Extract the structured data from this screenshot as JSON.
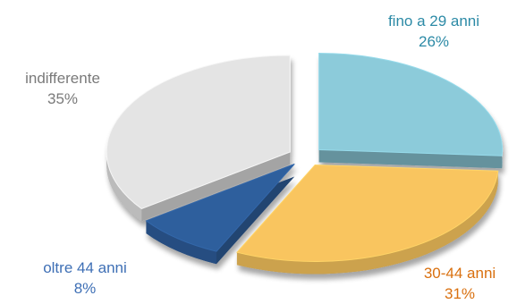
{
  "chart_data": {
    "type": "pie",
    "style": "3d-exploded",
    "slices": [
      {
        "label": "fino a 29 anni",
        "value": 26,
        "percent_label": "26%",
        "color": "#8CCBDA",
        "label_color": "#2C8AA6"
      },
      {
        "label": "30-44 anni",
        "value": 31,
        "percent_label": "31%",
        "color": "#F9C55F",
        "label_color": "#D9700F"
      },
      {
        "label": "oltre 44 anni",
        "value": 8,
        "percent_label": "8%",
        "color": "#2F5F9D",
        "label_color": "#3E6FB5"
      },
      {
        "label": "indifferente",
        "value": 35,
        "percent_label": "35%",
        "color": "#E4E4E4",
        "label_color": "#7A7A7A"
      }
    ]
  }
}
